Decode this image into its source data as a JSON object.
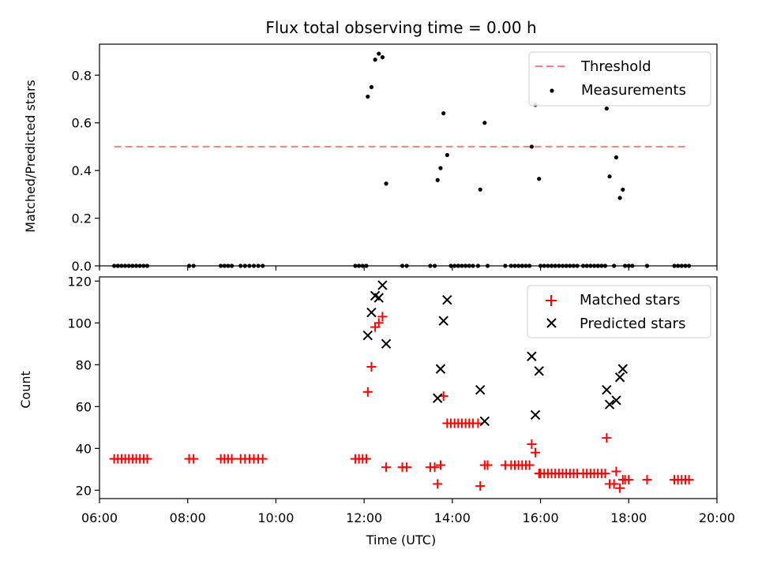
{
  "chart_data": [
    {
      "type": "scatter",
      "title": "Flux total observing time = 0.00 h",
      "xlabel": "",
      "ylabel": "Matched/Predicted stars",
      "xlim": [
        "06:00",
        "20:00"
      ],
      "ylim": [
        0,
        0.93
      ],
      "yticks": [
        "0.0",
        "0.2",
        "0.4",
        "0.6",
        "0.8"
      ],
      "threshold": {
        "name": "Threshold",
        "value": 0.5,
        "x_range": [
          "06:20",
          "19:22"
        ],
        "color": "#ff7f7f",
        "style": "dashed"
      },
      "legend_position": "upper right",
      "series": [
        {
          "name": "Measurements",
          "marker": "dot",
          "color": "#000000",
          "points": [
            [
              "06:20",
              0
            ],
            [
              "06:25",
              0
            ],
            [
              "06:30",
              0
            ],
            [
              "06:35",
              0
            ],
            [
              "06:40",
              0
            ],
            [
              "06:45",
              0
            ],
            [
              "06:50",
              0
            ],
            [
              "06:55",
              0
            ],
            [
              "07:00",
              0
            ],
            [
              "07:05",
              0
            ],
            [
              "08:02",
              0
            ],
            [
              "08:08",
              0
            ],
            [
              "08:45",
              0
            ],
            [
              "08:50",
              0
            ],
            [
              "08:55",
              0
            ],
            [
              "09:00",
              0
            ],
            [
              "09:12",
              0
            ],
            [
              "09:18",
              0
            ],
            [
              "09:24",
              0
            ],
            [
              "09:30",
              0
            ],
            [
              "09:36",
              0
            ],
            [
              "09:42",
              0
            ],
            [
              "11:48",
              0
            ],
            [
              "11:53",
              0
            ],
            [
              "11:58",
              0
            ],
            [
              "12:03",
              0
            ],
            [
              "12:05",
              0.71
            ],
            [
              "12:10",
              0.75
            ],
            [
              "12:15",
              0.865
            ],
            [
              "12:20",
              0.89
            ],
            [
              "12:25",
              0.875
            ],
            [
              "12:30",
              0.345
            ],
            [
              "12:52",
              0
            ],
            [
              "12:58",
              0
            ],
            [
              "13:30",
              0
            ],
            [
              "13:36",
              0
            ],
            [
              "13:40",
              0.36
            ],
            [
              "13:44",
              0.41
            ],
            [
              "13:48",
              0.64
            ],
            [
              "13:53",
              0.465
            ],
            [
              "13:58",
              0
            ],
            [
              "14:03",
              0
            ],
            [
              "14:08",
              0
            ],
            [
              "14:13",
              0
            ],
            [
              "14:18",
              0
            ],
            [
              "14:23",
              0
            ],
            [
              "14:28",
              0
            ],
            [
              "14:35",
              0
            ],
            [
              "14:38",
              0.32
            ],
            [
              "14:44",
              0.6
            ],
            [
              "14:48",
              0
            ],
            [
              "15:12",
              0
            ],
            [
              "15:20",
              0
            ],
            [
              "15:25",
              0
            ],
            [
              "15:30",
              0
            ],
            [
              "15:35",
              0
            ],
            [
              "15:40",
              0
            ],
            [
              "15:45",
              0
            ],
            [
              "15:48",
              0.5
            ],
            [
              "15:53",
              0.675
            ],
            [
              "15:58",
              0.365
            ],
            [
              "16:00",
              0
            ],
            [
              "16:05",
              0
            ],
            [
              "16:10",
              0
            ],
            [
              "16:15",
              0
            ],
            [
              "16:20",
              0
            ],
            [
              "16:25",
              0
            ],
            [
              "16:30",
              0
            ],
            [
              "16:35",
              0
            ],
            [
              "16:40",
              0
            ],
            [
              "16:45",
              0
            ],
            [
              "16:50",
              0
            ],
            [
              "16:58",
              0
            ],
            [
              "17:03",
              0
            ],
            [
              "17:08",
              0
            ],
            [
              "17:13",
              0
            ],
            [
              "17:18",
              0
            ],
            [
              "17:23",
              0
            ],
            [
              "17:28",
              0
            ],
            [
              "17:30",
              0.66
            ],
            [
              "17:34",
              0.375
            ],
            [
              "17:43",
              0.455
            ],
            [
              "17:48",
              0.285
            ],
            [
              "17:52",
              0.32
            ],
            [
              "17:40",
              0
            ],
            [
              "17:55",
              0
            ],
            [
              "18:00",
              0
            ],
            [
              "18:05",
              0
            ],
            [
              "18:25",
              0
            ],
            [
              "19:02",
              0
            ],
            [
              "19:07",
              0
            ],
            [
              "19:12",
              0
            ],
            [
              "19:17",
              0
            ],
            [
              "19:22",
              0
            ]
          ]
        }
      ]
    },
    {
      "type": "scatter",
      "title": "",
      "xlabel": "Time (UTC)",
      "ylabel": "Count",
      "xlim": [
        "06:00",
        "20:00"
      ],
      "ylim": [
        16,
        122
      ],
      "xticks": [
        "06:00",
        "08:00",
        "10:00",
        "12:00",
        "14:00",
        "16:00",
        "18:00",
        "20:00"
      ],
      "yticks": [
        "20",
        "40",
        "60",
        "80",
        "100",
        "120"
      ],
      "legend_position": "upper right",
      "series": [
        {
          "name": "Matched stars",
          "marker": "plus",
          "color": "#ff0000",
          "points": [
            [
              "06:20",
              35
            ],
            [
              "06:25",
              35
            ],
            [
              "06:30",
              35
            ],
            [
              "06:35",
              35
            ],
            [
              "06:40",
              35
            ],
            [
              "06:45",
              35
            ],
            [
              "06:50",
              35
            ],
            [
              "06:55",
              35
            ],
            [
              "07:00",
              35
            ],
            [
              "07:05",
              35
            ],
            [
              "08:02",
              35
            ],
            [
              "08:08",
              35
            ],
            [
              "08:45",
              35
            ],
            [
              "08:50",
              35
            ],
            [
              "08:55",
              35
            ],
            [
              "09:00",
              35
            ],
            [
              "09:12",
              35
            ],
            [
              "09:18",
              35
            ],
            [
              "09:24",
              35
            ],
            [
              "09:30",
              35
            ],
            [
              "09:36",
              35
            ],
            [
              "09:42",
              35
            ],
            [
              "11:48",
              35
            ],
            [
              "11:53",
              35
            ],
            [
              "11:58",
              35
            ],
            [
              "12:03",
              35
            ],
            [
              "12:05",
              67
            ],
            [
              "12:10",
              79
            ],
            [
              "12:15",
              98
            ],
            [
              "12:20",
              100
            ],
            [
              "12:25",
              103
            ],
            [
              "12:30",
              31
            ],
            [
              "12:52",
              31
            ],
            [
              "12:58",
              31
            ],
            [
              "13:30",
              31
            ],
            [
              "13:36",
              31
            ],
            [
              "13:40",
              23
            ],
            [
              "13:44",
              32
            ],
            [
              "13:48",
              65
            ],
            [
              "13:53",
              52
            ],
            [
              "13:58",
              52
            ],
            [
              "14:03",
              52
            ],
            [
              "14:08",
              52
            ],
            [
              "14:13",
              52
            ],
            [
              "14:18",
              52
            ],
            [
              "14:23",
              52
            ],
            [
              "14:28",
              52
            ],
            [
              "14:35",
              52
            ],
            [
              "14:38",
              22
            ],
            [
              "14:44",
              32
            ],
            [
              "14:48",
              32
            ],
            [
              "15:12",
              32
            ],
            [
              "15:20",
              32
            ],
            [
              "15:25",
              32
            ],
            [
              "15:30",
              32
            ],
            [
              "15:35",
              32
            ],
            [
              "15:40",
              32
            ],
            [
              "15:45",
              32
            ],
            [
              "15:48",
              42
            ],
            [
              "15:53",
              38
            ],
            [
              "15:58",
              28
            ],
            [
              "16:00",
              28
            ],
            [
              "16:05",
              28
            ],
            [
              "16:10",
              28
            ],
            [
              "16:15",
              28
            ],
            [
              "16:20",
              28
            ],
            [
              "16:25",
              28
            ],
            [
              "16:30",
              28
            ],
            [
              "16:35",
              28
            ],
            [
              "16:40",
              28
            ],
            [
              "16:45",
              28
            ],
            [
              "16:50",
              28
            ],
            [
              "16:58",
              28
            ],
            [
              "17:03",
              28
            ],
            [
              "17:08",
              28
            ],
            [
              "17:13",
              28
            ],
            [
              "17:18",
              28
            ],
            [
              "17:23",
              28
            ],
            [
              "17:28",
              28
            ],
            [
              "17:30",
              45
            ],
            [
              "17:34",
              23
            ],
            [
              "17:40",
              23
            ],
            [
              "17:43",
              29
            ],
            [
              "17:48",
              21
            ],
            [
              "17:52",
              25
            ],
            [
              "17:55",
              25
            ],
            [
              "18:00",
              25
            ],
            [
              "18:25",
              25
            ],
            [
              "19:02",
              25
            ],
            [
              "19:07",
              25
            ],
            [
              "19:12",
              25
            ],
            [
              "19:17",
              25
            ],
            [
              "19:22",
              25
            ]
          ]
        },
        {
          "name": "Predicted stars",
          "marker": "x",
          "color": "#000000",
          "points": [
            [
              "12:05",
              94
            ],
            [
              "12:10",
              105
            ],
            [
              "12:15",
              113
            ],
            [
              "12:20",
              112
            ],
            [
              "12:25",
              118
            ],
            [
              "12:30",
              90
            ],
            [
              "13:40",
              64
            ],
            [
              "13:44",
              78
            ],
            [
              "13:48",
              101
            ],
            [
              "13:53",
              111
            ],
            [
              "14:38",
              68
            ],
            [
              "14:44",
              53
            ],
            [
              "15:48",
              84
            ],
            [
              "15:53",
              56
            ],
            [
              "15:58",
              77
            ],
            [
              "17:30",
              68
            ],
            [
              "17:34",
              61
            ],
            [
              "17:43",
              63
            ],
            [
              "17:48",
              74
            ],
            [
              "17:52",
              78
            ]
          ]
        }
      ]
    }
  ]
}
